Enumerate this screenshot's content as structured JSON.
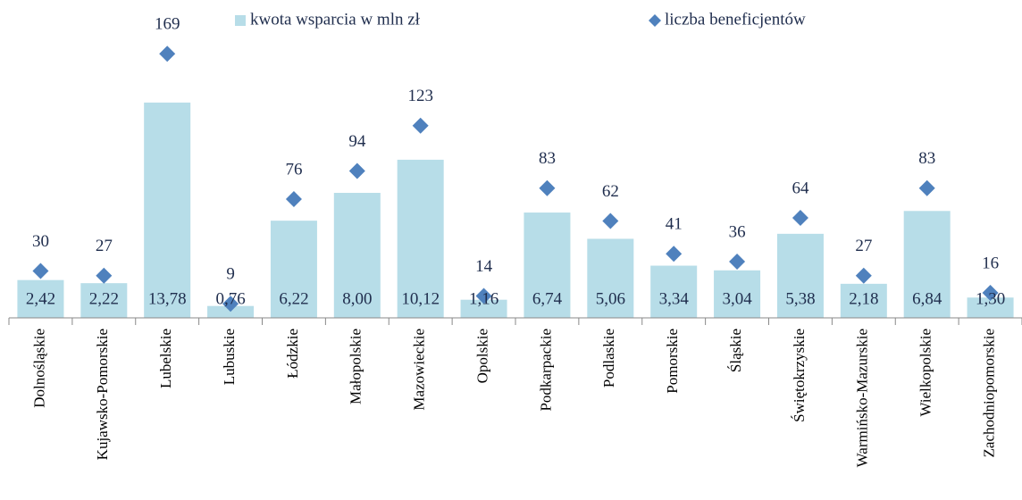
{
  "chart_data": {
    "type": "bar",
    "categories": [
      "Dolnośląskie",
      "Kujawsko-Pomorskie",
      "Lubelskie",
      "Lubuskie",
      "Łódzkie",
      "Małopolskie",
      "Mazowieckie",
      "Opolskie",
      "Podkarpackie",
      "Podlaskie",
      "Pomorskie",
      "Śląskie",
      "Świętokrzyskie",
      "Warmińsko-Mazurskie",
      "Wielkopolskie",
      "Zachodniopomorskie"
    ],
    "series": [
      {
        "name": "kwota wsparcia w mln zł",
        "type": "bar",
        "color": "#b7dde8",
        "values": [
          2.42,
          2.22,
          13.78,
          0.76,
          6.22,
          8.0,
          10.12,
          1.16,
          6.74,
          5.06,
          3.34,
          3.04,
          5.38,
          2.18,
          6.84,
          1.3
        ],
        "value_labels": [
          "2,42",
          "2,22",
          "13,78",
          "0,76",
          "6,22",
          "8,00",
          "10,12",
          "1,16",
          "6,74",
          "5,06",
          "3,34",
          "3,04",
          "5,38",
          "2,18",
          "6,84",
          "1,30"
        ]
      },
      {
        "name": "liczba beneficjentów",
        "type": "scatter",
        "axis": "y2",
        "color": "#4f81bd",
        "values": [
          30,
          27,
          169,
          9,
          76,
          94,
          123,
          14,
          83,
          62,
          41,
          36,
          64,
          27,
          83,
          16
        ]
      }
    ],
    "ylim": [
      0,
      20
    ],
    "y2lim": [
      0,
      200
    ],
    "legend": "top"
  }
}
